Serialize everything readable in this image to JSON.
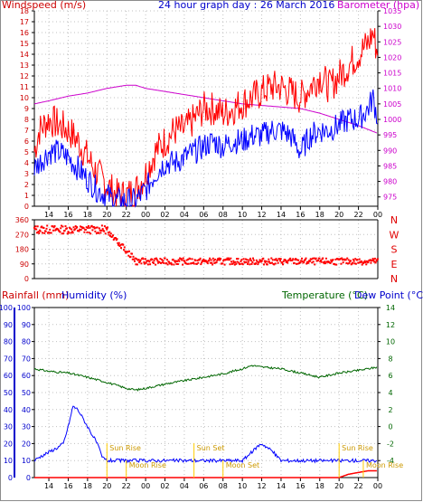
{
  "header": {
    "left_label": "Windspeed (m/s)",
    "center_label": "24 hour graph day : 26 March 2016",
    "right_label": "Barometer (hpa)"
  },
  "bottom_header": {
    "rainfall_label": "Rainfall (mm)",
    "humidity_label": "Humidity (%)",
    "temperature_label": "Temperature (°C)",
    "dewpoint_label": "Dew Point (°C)"
  },
  "hour_labels": [
    "14",
    "16",
    "18",
    "20",
    "22",
    "00",
    "02",
    "04",
    "06",
    "08",
    "10",
    "12",
    "14",
    "16",
    "18",
    "20",
    "22",
    "00"
  ],
  "compass": [
    "N",
    "W",
    "S",
    "E",
    "N"
  ],
  "colors": {
    "wind_gust": "#ff0000",
    "wind_avg": "#0000ff",
    "barometer": "#cc00cc",
    "direction": "#ff0000",
    "humidity": "#0000ff",
    "temperature": "#006600",
    "dewpoint": "#0000ff",
    "rain": "#ff0000",
    "event": "#ffcc00",
    "grid": "#c0c0c0"
  },
  "events": [
    {
      "label": "Sun Rise",
      "time": 20.0
    },
    {
      "label": "Moon Rise",
      "time": 22.0
    },
    {
      "label": "Sun Set",
      "time": 29.0
    },
    {
      "label": "Moon Set",
      "time": 32.0
    },
    {
      "label": "Sun Rise",
      "time": 44.0
    },
    {
      "label": "Moon Rise",
      "time": 46.5
    }
  ],
  "chart_data": [
    {
      "type": "line",
      "name": "wind-barometer",
      "x_range": [
        12.5,
        48.0
      ],
      "windspeed_ylim": [
        0,
        18
      ],
      "barometer_ylim": [
        972,
        1035
      ],
      "windspeed_ticks": [
        0,
        1,
        2,
        3,
        4,
        5,
        6,
        7,
        8,
        9,
        10,
        11,
        12,
        13,
        14,
        15,
        16,
        17,
        18
      ],
      "barometer_ticks": [
        975,
        980,
        985,
        990,
        995,
        1000,
        1005,
        1010,
        1015,
        1020,
        1025,
        1030,
        1035
      ],
      "series": [
        {
          "key": "gust",
          "x": [
            12.5,
            13,
            14,
            15,
            16,
            17,
            18,
            19,
            20,
            21,
            22,
            23,
            24,
            25,
            26,
            27,
            28,
            29,
            30,
            31,
            32,
            33,
            34,
            35,
            36,
            37,
            38,
            39,
            40,
            41,
            42,
            43,
            44,
            45,
            46,
            47,
            47.5,
            48
          ],
          "values": [
            5,
            7,
            8,
            7.5,
            7,
            6,
            4.5,
            3,
            2,
            1,
            1,
            1.5,
            3,
            5,
            6,
            7,
            7,
            8,
            9,
            9,
            8.5,
            9,
            9.5,
            10,
            10.5,
            11,
            11,
            10.5,
            10,
            11,
            12,
            11,
            12,
            13,
            14,
            15,
            16,
            14
          ]
        },
        {
          "key": "average",
          "x": [
            12.5,
            13,
            14,
            15,
            16,
            17,
            18,
            19,
            20,
            21,
            22,
            23,
            24,
            25,
            26,
            27,
            28,
            29,
            30,
            31,
            32,
            33,
            34,
            35,
            36,
            37,
            38,
            39,
            40,
            41,
            42,
            43,
            44,
            45,
            46,
            47,
            47.5,
            48
          ],
          "values": [
            3.5,
            4,
            5,
            5,
            4.5,
            3.5,
            2.5,
            1.5,
            1,
            0.5,
            0.5,
            0.5,
            1.5,
            3,
            4,
            4,
            4.5,
            5,
            5.5,
            6,
            5.5,
            6,
            6,
            6.5,
            6.5,
            7,
            7,
            6.5,
            5,
            6.5,
            7,
            7,
            7.5,
            8,
            8,
            9,
            10,
            8
          ]
        },
        {
          "key": "barometer",
          "x": [
            12.5,
            14,
            16,
            18,
            20,
            22,
            23,
            24,
            26,
            28,
            30,
            32,
            34,
            36,
            38,
            40,
            42,
            44,
            46,
            48
          ],
          "values": [
            1005,
            1006,
            1007.5,
            1008.5,
            1010,
            1011,
            1011,
            1010,
            1009,
            1008,
            1007,
            1006,
            1005,
            1004.5,
            1004,
            1003.5,
            1002,
            1000,
            998,
            995.5
          ]
        }
      ]
    },
    {
      "type": "scatter",
      "name": "wind-direction",
      "x_range": [
        12.5,
        48.0
      ],
      "ylim": [
        0,
        360
      ],
      "ticks": [
        0,
        90,
        180,
        270,
        360
      ],
      "segments": [
        {
          "from": 12.5,
          "to": 20.0,
          "center": 300,
          "spread": 25
        },
        {
          "from": 20.0,
          "to": 23.0,
          "center": 240,
          "spread": 40
        },
        {
          "from": 23.0,
          "to": 48.0,
          "center": 105,
          "spread": 20
        }
      ]
    },
    {
      "type": "line",
      "name": "temp-humidity-rain",
      "x_range": [
        12.5,
        48.0
      ],
      "humidity_ylim": [
        0,
        100
      ],
      "humidity_ticks": [
        0,
        10,
        20,
        30,
        40,
        50,
        60,
        70,
        80,
        90,
        100
      ],
      "rain_ylim": [
        0,
        100
      ],
      "temperature_ylim": [
        -6,
        14
      ],
      "temperature_ticks": [
        -4,
        -2,
        0,
        2,
        4,
        6,
        8,
        10,
        12,
        14
      ],
      "series": [
        {
          "key": "temperature",
          "x": [
            12.5,
            14,
            16,
            18,
            20,
            22,
            23,
            24,
            26,
            28,
            30,
            32,
            34,
            35,
            36,
            38,
            40,
            42,
            44,
            46,
            48
          ],
          "values": [
            6.8,
            6.5,
            6.3,
            5.8,
            5.2,
            4.5,
            4.3,
            4.5,
            5.0,
            5.4,
            5.8,
            6.2,
            6.8,
            7.2,
            7.0,
            6.8,
            6.3,
            5.8,
            6.3,
            6.6,
            7.0
          ]
        },
        {
          "key": "humidity",
          "x": [
            12.5,
            13,
            14,
            15,
            15.5,
            16,
            16.5,
            17,
            18,
            19,
            19.5,
            20,
            22,
            24,
            26,
            28,
            30,
            32,
            34,
            35,
            35.5,
            36,
            37,
            38,
            40,
            42,
            44,
            46,
            48
          ],
          "values": [
            10,
            12,
            15,
            18,
            20,
            30,
            42,
            40,
            30,
            20,
            12,
            10,
            10,
            10,
            10,
            10,
            10,
            10,
            10,
            15,
            18,
            20,
            16,
            10,
            10,
            10,
            10,
            10,
            10
          ]
        },
        {
          "key": "rain",
          "x": [
            12.5,
            44,
            45,
            46,
            47,
            48
          ],
          "values": [
            0,
            0,
            2,
            3,
            4,
            4
          ]
        }
      ]
    }
  ]
}
